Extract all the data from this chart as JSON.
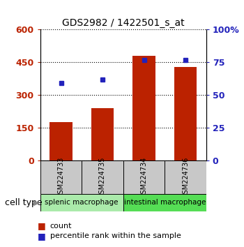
{
  "title": "GDS2982 / 1422501_s_at",
  "samples": [
    "GSM224733",
    "GSM224735",
    "GSM224734",
    "GSM224736"
  ],
  "counts": [
    175,
    240,
    480,
    430
  ],
  "percentile_pct": [
    59,
    62,
    77,
    77
  ],
  "ylim_left": [
    0,
    600
  ],
  "yticks_left": [
    0,
    150,
    300,
    450,
    600
  ],
  "yticks_right_pct": [
    0,
    25,
    50,
    75,
    100
  ],
  "yticks_right_labels": [
    "0",
    "25",
    "50",
    "75",
    "100%"
  ],
  "bar_color": "#bb2200",
  "dot_color": "#2222bb",
  "bar_width": 0.55,
  "groups": [
    {
      "label": "splenic macrophage",
      "indices": [
        0,
        1
      ],
      "color": "#aaeaaa"
    },
    {
      "label": "intestinal macrophage",
      "indices": [
        2,
        3
      ],
      "color": "#55dd55"
    }
  ],
  "sample_box_color": "#c8c8c8",
  "cell_type_label": "cell type",
  "legend_count_label": "count",
  "legend_pct_label": "percentile rank within the sample",
  "background_color": "#ffffff"
}
